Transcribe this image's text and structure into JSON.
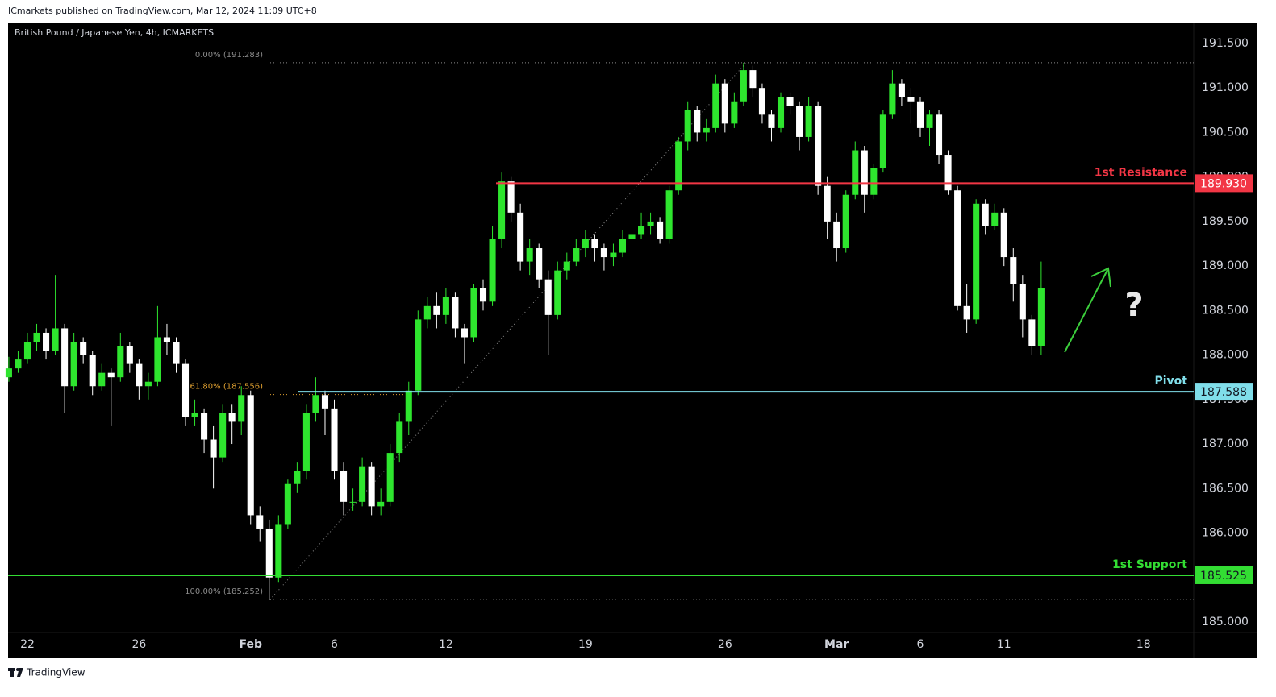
{
  "header": {
    "published": "ICmarkets published on TradingView.com, Mar 12, 2024 11:09 UTC+8"
  },
  "footer": {
    "logo_text": "TradingView"
  },
  "chart_data": {
    "type": "candlestick",
    "title": "British Pound / Japanese Yen, 4h, ICMARKETS",
    "up_color": "#2ee52e",
    "down_color": "#ffffff",
    "x": [
      -2,
      -1,
      0,
      1,
      2,
      3,
      4,
      5,
      6,
      7,
      8,
      9,
      10,
      11,
      12,
      13,
      14,
      15,
      16,
      17,
      18,
      19,
      20,
      21,
      22,
      23,
      24,
      25,
      26,
      27,
      28,
      29,
      30,
      31,
      32,
      33,
      34,
      35,
      36,
      37,
      38,
      39,
      40,
      41,
      42,
      43,
      44,
      45,
      46,
      47,
      48,
      49,
      50,
      51,
      52,
      53,
      54,
      55,
      56,
      57,
      58,
      59,
      60,
      61,
      62,
      63,
      64,
      65,
      66,
      67,
      68,
      69,
      70,
      71,
      72,
      73,
      74,
      75,
      76,
      77,
      78,
      79,
      80,
      81,
      82,
      83,
      84,
      85,
      86,
      87,
      88,
      89,
      90,
      91,
      92,
      93,
      94,
      95,
      96,
      97,
      98,
      99,
      100,
      101,
      102,
      103,
      104,
      105,
      106,
      107,
      108,
      109
    ],
    "candles": [
      [
        187.75,
        187.98,
        187.7,
        187.85
      ],
      [
        187.85,
        188.05,
        187.8,
        187.95
      ],
      [
        187.95,
        188.25,
        187.9,
        188.15
      ],
      [
        188.15,
        188.35,
        188.05,
        188.25
      ],
      [
        188.25,
        188.3,
        187.95,
        188.05
      ],
      [
        188.05,
        188.9,
        188.0,
        188.3
      ],
      [
        188.3,
        188.35,
        187.35,
        187.65
      ],
      [
        187.65,
        188.25,
        187.6,
        188.15
      ],
      [
        188.15,
        188.2,
        187.9,
        188.0
      ],
      [
        188.0,
        188.05,
        187.55,
        187.65
      ],
      [
        187.65,
        187.9,
        187.6,
        187.8
      ],
      [
        187.8,
        187.85,
        187.2,
        187.75
      ],
      [
        187.75,
        188.25,
        187.7,
        188.1
      ],
      [
        188.1,
        188.15,
        187.8,
        187.9
      ],
      [
        187.9,
        187.95,
        187.5,
        187.65
      ],
      [
        187.65,
        187.8,
        187.5,
        187.7
      ],
      [
        187.7,
        188.55,
        187.65,
        188.2
      ],
      [
        188.2,
        188.35,
        188.0,
        188.15
      ],
      [
        188.15,
        188.2,
        187.8,
        187.9
      ],
      [
        187.9,
        187.95,
        187.2,
        187.3
      ],
      [
        187.3,
        187.5,
        187.2,
        187.35
      ],
      [
        187.35,
        187.4,
        186.9,
        187.05
      ],
      [
        187.05,
        187.2,
        186.5,
        186.85
      ],
      [
        186.85,
        187.45,
        186.8,
        187.35
      ],
      [
        187.35,
        187.45,
        187.0,
        187.25
      ],
      [
        187.25,
        187.65,
        187.1,
        187.55
      ],
      [
        187.55,
        187.6,
        186.1,
        186.2
      ],
      [
        186.2,
        186.3,
        185.9,
        186.05
      ],
      [
        186.05,
        186.15,
        185.252,
        185.5
      ],
      [
        185.5,
        186.2,
        185.45,
        186.1
      ],
      [
        186.1,
        186.6,
        186.05,
        186.55
      ],
      [
        186.55,
        186.8,
        186.45,
        186.7
      ],
      [
        186.7,
        187.45,
        186.6,
        187.35
      ],
      [
        187.35,
        187.75,
        187.25,
        187.55
      ],
      [
        187.55,
        187.6,
        187.1,
        187.4
      ],
      [
        187.4,
        187.5,
        186.6,
        186.7
      ],
      [
        186.7,
        186.8,
        186.2,
        186.35
      ],
      [
        186.35,
        186.5,
        186.25,
        186.35
      ],
      [
        186.35,
        186.85,
        186.3,
        186.75
      ],
      [
        186.75,
        186.8,
        186.2,
        186.3
      ],
      [
        186.3,
        186.5,
        186.2,
        186.35
      ],
      [
        186.35,
        187.0,
        186.3,
        186.9
      ],
      [
        186.9,
        187.35,
        186.8,
        187.25
      ],
      [
        187.25,
        187.7,
        187.1,
        187.6
      ],
      [
        187.6,
        188.5,
        187.55,
        188.4
      ],
      [
        188.4,
        188.65,
        188.3,
        188.55
      ],
      [
        188.55,
        188.7,
        188.3,
        188.45
      ],
      [
        188.45,
        188.75,
        188.35,
        188.65
      ],
      [
        188.65,
        188.7,
        188.2,
        188.3
      ],
      [
        188.3,
        188.35,
        187.9,
        188.2
      ],
      [
        188.2,
        188.8,
        188.15,
        188.75
      ],
      [
        188.75,
        188.85,
        188.5,
        188.6
      ],
      [
        188.6,
        189.45,
        188.55,
        189.3
      ],
      [
        189.3,
        190.05,
        189.2,
        189.95
      ],
      [
        189.95,
        190.0,
        189.5,
        189.6
      ],
      [
        189.6,
        189.7,
        188.95,
        189.05
      ],
      [
        189.05,
        189.3,
        188.9,
        189.2
      ],
      [
        189.2,
        189.25,
        188.75,
        188.85
      ],
      [
        188.85,
        188.95,
        188.0,
        188.45
      ],
      [
        188.45,
        189.05,
        188.4,
        188.95
      ],
      [
        188.95,
        189.15,
        188.85,
        189.05
      ],
      [
        189.05,
        189.3,
        189.0,
        189.2
      ],
      [
        189.2,
        189.4,
        189.1,
        189.3
      ],
      [
        189.3,
        189.35,
        189.05,
        189.2
      ],
      [
        189.2,
        189.25,
        188.95,
        189.1
      ],
      [
        189.1,
        189.25,
        189.0,
        189.15
      ],
      [
        189.15,
        189.4,
        189.1,
        189.3
      ],
      [
        189.3,
        189.5,
        189.2,
        189.35
      ],
      [
        189.35,
        189.6,
        189.3,
        189.45
      ],
      [
        189.45,
        189.6,
        189.35,
        189.5
      ],
      [
        189.5,
        189.55,
        189.25,
        189.3
      ],
      [
        189.3,
        189.9,
        189.25,
        189.85
      ],
      [
        189.85,
        190.45,
        189.8,
        190.4
      ],
      [
        190.4,
        190.85,
        190.3,
        190.75
      ],
      [
        190.75,
        190.8,
        190.4,
        190.5
      ],
      [
        190.5,
        190.65,
        190.4,
        190.55
      ],
      [
        190.55,
        191.15,
        190.5,
        191.05
      ],
      [
        191.05,
        191.1,
        190.5,
        190.6
      ],
      [
        190.6,
        190.95,
        190.55,
        190.85
      ],
      [
        190.85,
        191.283,
        190.8,
        191.2
      ],
      [
        191.2,
        191.25,
        190.9,
        191.0
      ],
      [
        191.0,
        191.05,
        190.6,
        190.7
      ],
      [
        190.7,
        190.75,
        190.4,
        190.55
      ],
      [
        190.55,
        190.95,
        190.5,
        190.9
      ],
      [
        190.9,
        190.95,
        190.7,
        190.8
      ],
      [
        190.8,
        190.85,
        190.3,
        190.45
      ],
      [
        190.45,
        190.9,
        190.4,
        190.8
      ],
      [
        190.8,
        190.85,
        189.8,
        189.9
      ],
      [
        189.9,
        190.0,
        189.3,
        189.5
      ],
      [
        189.5,
        189.6,
        189.05,
        189.2
      ],
      [
        189.2,
        189.85,
        189.15,
        189.8
      ],
      [
        189.8,
        190.4,
        189.75,
        190.3
      ],
      [
        190.3,
        190.35,
        189.6,
        189.8
      ],
      [
        189.8,
        190.15,
        189.75,
        190.1
      ],
      [
        190.1,
        190.75,
        190.05,
        190.7
      ],
      [
        190.7,
        191.2,
        190.65,
        191.05
      ],
      [
        191.05,
        191.1,
        190.8,
        190.9
      ],
      [
        190.9,
        191.0,
        190.6,
        190.85
      ],
      [
        190.85,
        190.9,
        190.45,
        190.55
      ],
      [
        190.55,
        190.75,
        190.35,
        190.7
      ],
      [
        190.7,
        190.75,
        190.15,
        190.25
      ],
      [
        190.25,
        190.3,
        189.8,
        189.85
      ],
      [
        189.85,
        189.9,
        188.5,
        188.55
      ],
      [
        188.55,
        188.8,
        188.25,
        188.4
      ],
      [
        188.4,
        189.75,
        188.35,
        189.7
      ],
      [
        189.7,
        189.75,
        189.35,
        189.45
      ],
      [
        189.45,
        189.7,
        189.4,
        189.6
      ],
      [
        189.6,
        189.65,
        189.0,
        189.1
      ],
      [
        189.1,
        189.2,
        188.6,
        188.8
      ],
      [
        188.8,
        188.9,
        188.2,
        188.4
      ],
      [
        188.4,
        188.45,
        188.0,
        188.1
      ],
      [
        188.1,
        189.05,
        188.0,
        188.75
      ]
    ],
    "xlim": [
      -2.08,
      125.4
    ],
    "xticks": [
      {
        "value": 0,
        "label": "22"
      },
      {
        "value": 12,
        "label": "26"
      },
      {
        "value": 24,
        "label": "Feb"
      },
      {
        "value": 33,
        "label": "6"
      },
      {
        "value": 45,
        "label": "12"
      },
      {
        "value": 60,
        "label": "19"
      },
      {
        "value": 75,
        "label": "26"
      },
      {
        "value": 87,
        "label": "Mar"
      },
      {
        "value": 96,
        "label": "6"
      },
      {
        "value": 105,
        "label": "11"
      },
      {
        "value": 120,
        "label": "18"
      }
    ],
    "ylim": [
      184.882,
      191.735
    ],
    "yticks": [
      {
        "value": 185,
        "label": "185.000"
      },
      {
        "value": 185.5,
        "label": "185.500"
      },
      {
        "value": 186,
        "label": "186.000"
      },
      {
        "value": 186.5,
        "label": "186.500"
      },
      {
        "value": 187,
        "label": "187.000"
      },
      {
        "value": 187.5,
        "label": "187.500"
      },
      {
        "value": 188,
        "label": "188.000"
      },
      {
        "value": 188.5,
        "label": "188.500"
      },
      {
        "value": 189,
        "label": "189.000"
      },
      {
        "value": 189.5,
        "label": "189.500"
      },
      {
        "value": 190,
        "label": "190.000"
      },
      {
        "value": 190.5,
        "label": "190.500"
      },
      {
        "value": 191,
        "label": "191.000"
      },
      {
        "value": 191.5,
        "label": "191.500"
      }
    ],
    "grid": false,
    "levels": [
      {
        "name": "1st Resistance",
        "value": 189.93,
        "value_label": "189.930",
        "color": "#f23645",
        "text_color": "#ffffff"
      },
      {
        "name": "Pivot",
        "value": 187.588,
        "value_label": "187.588",
        "color": "#80deea",
        "text_color": "#131722"
      },
      {
        "name": "1st Support",
        "value": 185.525,
        "value_label": "185.525",
        "color": "#33dd33",
        "text_color": "#131722"
      }
    ],
    "fib_levels": [
      {
        "label": "0.00% (191.283)",
        "value": 191.283,
        "color": "#8a8a8a"
      },
      {
        "label": "61.80% (187.556)",
        "value": 187.556,
        "color": "#e0a030"
      },
      {
        "label": "100.00% (185.252)",
        "value": 185.252,
        "color": "#8a8a8a"
      }
    ],
    "annotations": [
      "?"
    ]
  }
}
